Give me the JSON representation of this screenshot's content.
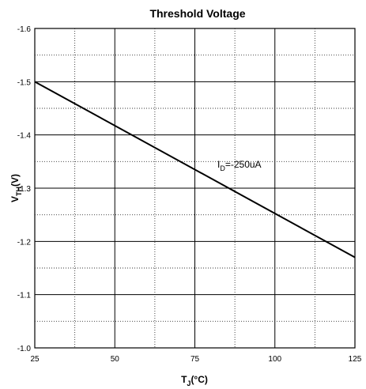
{
  "chart_data": {
    "type": "line",
    "title": "Threshold Voltage",
    "xlabel": {
      "main": "T",
      "sub": "J",
      "suffix": "(°C)"
    },
    "ylabel": {
      "main": "V",
      "sub": "TH",
      "suffix": "(V)"
    },
    "xlim": [
      25,
      125
    ],
    "ylim": [
      -1.0,
      -1.6
    ],
    "x_ticks": [
      25,
      50,
      75,
      100,
      125
    ],
    "y_ticks": [
      -1.0,
      -1.1,
      -1.2,
      -1.3,
      -1.4,
      -1.5,
      -1.6
    ],
    "x_tick_labels": [
      "25",
      "50",
      "75",
      "100",
      "125"
    ],
    "y_tick_labels": [
      "-1.0",
      "-1.1",
      "-1.2",
      "-1.3",
      "-1.4",
      "-1.5",
      "-1.6"
    ],
    "grid": true,
    "series": [
      {
        "x": [
          25,
          125
        ],
        "y": [
          -1.5,
          -1.17
        ]
      }
    ],
    "annotation": {
      "main": "I",
      "sub": "D",
      "suffix": "=-250uA"
    }
  }
}
